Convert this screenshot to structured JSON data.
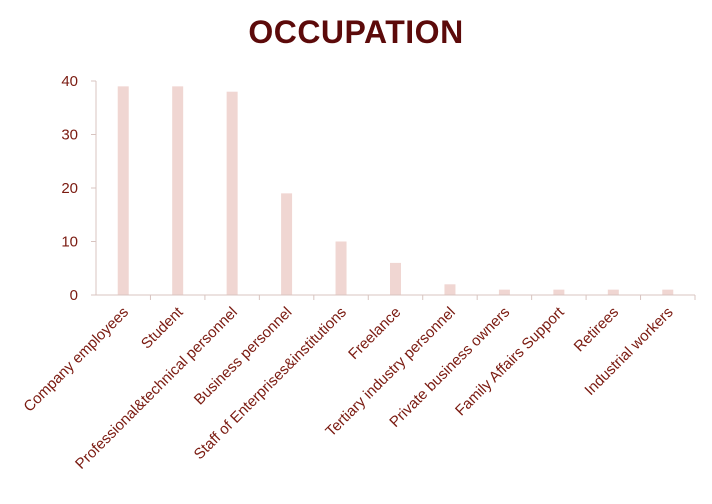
{
  "chart_data": {
    "type": "bar",
    "title": "OCCUPATION",
    "xlabel": "",
    "ylabel": "",
    "ylim": [
      0,
      40
    ],
    "yticks": [
      0,
      10,
      20,
      30,
      40
    ],
    "grid": false,
    "legend": "none",
    "bar_color": "#f0d6d2",
    "axis_color": "#d8c4c0",
    "text_color": "#7a1a10",
    "title_color": "#5c0a0a",
    "categories": [
      "Company employees",
      "Student",
      "Professional&technical personnel",
      "Business personnel",
      "Staff of Enterprises&institutions",
      "Freelance",
      "Tertiary industry personnel",
      "Private business owners",
      "Family Affairs Support",
      "Retirees",
      "Industrial workers"
    ],
    "values": [
      39,
      39,
      38,
      19,
      10,
      6,
      2,
      1,
      1,
      1,
      1
    ]
  }
}
